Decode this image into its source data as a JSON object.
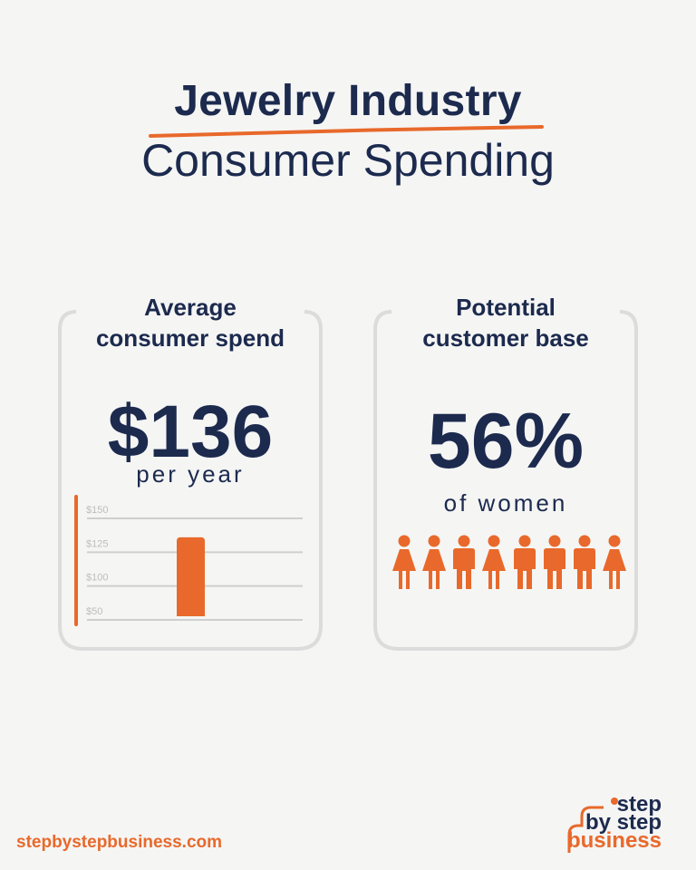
{
  "header": {
    "title_line1": "Jewelry Industry",
    "title_line2": "Consumer Spending"
  },
  "card_spend": {
    "title_line1": "Average",
    "title_line2": "consumer spend",
    "value": "$136",
    "value_caption": "per year"
  },
  "card_base": {
    "title_line1": "Potential",
    "title_line2": "customer base",
    "value": "56%",
    "value_caption": "of women"
  },
  "chart_data": {
    "type": "bar",
    "categories": [
      ""
    ],
    "values": [
      136
    ],
    "ticks": [
      "$50",
      "$100",
      "$125",
      "$150"
    ],
    "tick_values": [
      50,
      100,
      125,
      150
    ],
    "title": "",
    "xlabel": "",
    "ylabel": "",
    "grid": true,
    "bar_color": "#e8692b"
  },
  "people_icons": [
    "female-icon",
    "female-icon",
    "male-icon",
    "female-icon",
    "male-icon",
    "male-icon",
    "male-icon",
    "female-icon"
  ],
  "colors": {
    "accent": "#e8692b",
    "navy": "#1c2a4e",
    "card_border": "#dcdcdc",
    "background": "#f5f5f4"
  },
  "footer": {
    "url": "stepbystepbusiness.com",
    "logo_line1": "step",
    "logo_line2": "by step",
    "logo_line3": "business"
  }
}
